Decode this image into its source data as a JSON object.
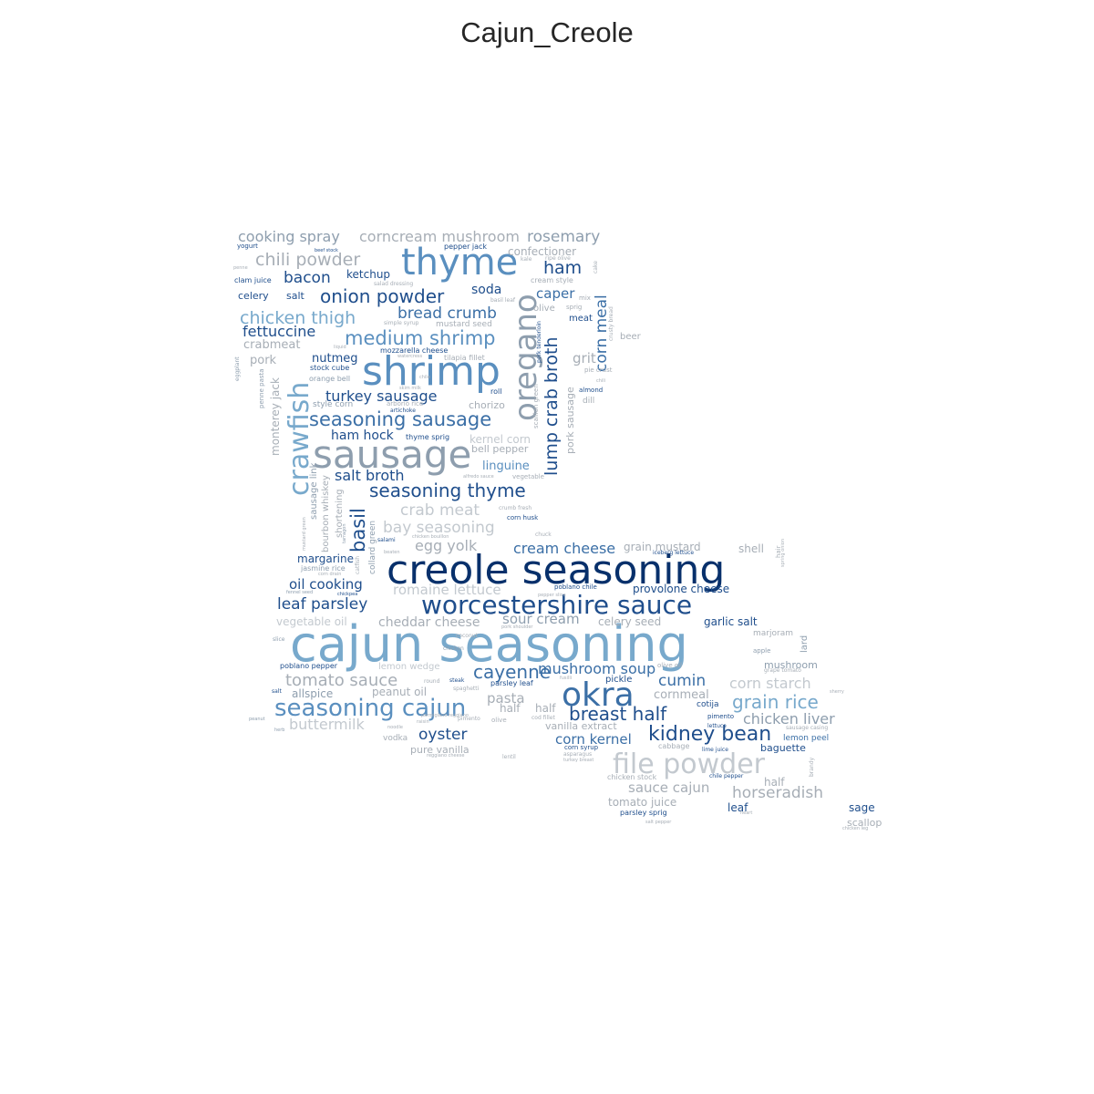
{
  "title": "Cajun_Creole",
  "palette": {
    "c1": "#08306b",
    "c2": "#1f4e8c",
    "c3": "#3b6fa6",
    "c4": "#5a8fbf",
    "c5": "#78a9cc",
    "c6": "#8e9eae",
    "c7": "#a7aeb6",
    "c8": "#c3c9cf"
  },
  "words": {
    "cajun_seasoning": "cajun seasoning",
    "creole_seasoning": "creole seasoning",
    "worcestershire_sauce": "worcestershire sauce",
    "shrimp": "shrimp",
    "sausage": "sausage",
    "thyme": "thyme",
    "okra": "okra",
    "oregano": "oregano",
    "crawfish": "crawfish",
    "file_powder": "file powder",
    "seasoning_cajun": "seasoning cajun",
    "kidney_bean": "kidney bean",
    "seasoning_sausage": "seasoning sausage",
    "medium_shrimp": "medium shrimp",
    "seasoning_thyme": "seasoning thyme",
    "onion_powder": "onion powder",
    "breast_half": "breast half",
    "grain_rice": "grain rice",
    "cayenne": "cayenne",
    "chili_powder": "chili powder",
    "chicken_thigh": "chicken thigh",
    "bread_crumb": "bread crumb",
    "lump_crab_broth": "lump crab broth",
    "corn_meal": "corn meal",
    "tomato_sauce": "tomato sauce",
    "leaf_parsley": "leaf parsley",
    "basil": "basil",
    "cooking_spray": "cooking spray",
    "cornream_mushroom": "corncream mushroom",
    "rosemary": "rosemary",
    "ham": "ham",
    "bacon": "bacon",
    "fettuccine": "fettuccine",
    "turkey_sausage": "turkey sausage",
    "salt_broth": "salt broth",
    "crab_meat": "crab meat",
    "bay_seasoning": "bay seasoning",
    "egg_yolk": "egg yolk",
    "cream_cheese": "cream cheese",
    "mushroom_soup": "mushroom soup",
    "cumin": "cumin",
    "corn_starch": "corn starch",
    "chicken_liver": "chicken liver",
    "horseradish": "horseradish",
    "oyster": "oyster",
    "buttermilk": "buttermilk",
    "romaine_lettuce": "romaine lettuce",
    "cheddar_cheese": "cheddar cheese",
    "sour_cream": "sour cream",
    "oil_cooking": "oil cooking",
    "pasta": "pasta",
    "corn_kernel": "corn kernel",
    "sauce_cajun": "sauce cajun",
    "caper": "caper",
    "soda": "soda",
    "grit": "grit",
    "ham_hock": "ham hock",
    "linguine": "linguine",
    "nutmeg": "nutmeg",
    "crabmeat": "crabmeat",
    "pork": "pork",
    "celery": "celery",
    "salt": "salt",
    "ketchup": "ketchup",
    "confectioner": "confectioner",
    "monterey_jack": "monterey jack",
    "margarine": "margarine",
    "vegetable_oil": "vegetable oil",
    "allspice": "allspice",
    "peanut_oil": "peanut oil",
    "half": "half",
    "cornmeal": "cornmeal",
    "celery_seed": "celery seed",
    "garlic_salt": "garlic salt",
    "provolone_cheese": "provolone cheese",
    "grain_mustard": "grain mustard",
    "shell": "shell",
    "chorizo": "chorizo",
    "bell_pepper": "bell pepper",
    "kernel_corn": "kernel corn",
    "leaf": "leaf",
    "sage": "sage",
    "scallop": "scallop",
    "tomato_juice": "tomato juice",
    "baguette": "baguette",
    "lemon_peel": "lemon peel",
    "mushroom": "mushroom",
    "pickle": "pickle",
    "vanilla_extract": "vanilla extract",
    "pure_vanilla": "pure vanilla",
    "vodka": "vodka",
    "lemon_wedge": "lemon wedge",
    "lard": "lard",
    "marjoram": "marjoram",
    "beer": "beer",
    "dill": "dill",
    "pork_sausage": "pork sausage",
    "meat": "meat",
    "olive": "olive",
    "sausage_link": "sausage link",
    "bourbon_whiskey": "bourbon whiskey",
    "shortening": "shortening",
    "collard_green": "collard green",
    "jasmine_rice": "jasmine rice",
    "style_corn": "style corn",
    "stock_cube": "stock cube",
    "orange_bell": "orange bell",
    "mustard_seed": "mustard seed",
    "tilapia_fillet": "tilapia fillet",
    "mozzarella_cheese": "mozzarella cheese",
    "pepper_jack": "pepper jack",
    "cream_style": "cream style",
    "clam_juice": "clam juice",
    "yogurt": "yogurt",
    "beef_stock": "beef stock",
    "salad_dressing": "salad dressing",
    "simple_syrup": "simple syrup",
    "basil_leaf": "basil leaf",
    "roll": "roll",
    "thyme_sprig": "thyme sprig",
    "vegetable": "vegetable",
    "cotija": "cotija",
    "pimento": "pimento",
    "cabbage": "cabbage",
    "chicken_stock": "chicken stock",
    "parsley_sprig": "parsley sprig",
    "corn_syrup": "corn syrup",
    "asparagus": "asparagus",
    "lentil": "lentil",
    "chuck": "chuck",
    "crumb_fresh": "crumb fresh",
    "corn_husk": "corn husk",
    "poblano_chile": "poblano chile",
    "poblano_pepper": "poblano pepper",
    "parsley_leaf": "parsley leaf",
    "apple": "apple",
    "iceberg_lettuce": "iceberg lettuce",
    "lime_juice": "lime juice",
    "chile_pepper": "chile pepper",
    "olive_oil": "olive oil",
    "grape_tomato": "grape tomato",
    "eggplant": "eggplant",
    "penne_pasta": "penne pasta",
    "chickpea": "chickpea",
    "salami": "salami",
    "artichoke": "artichoke",
    "pie_crust": "pie crust",
    "almond": "almond",
    "chili": "chili",
    "penne": "penne",
    "kale": "kale",
    "ripe_olive": "ripe olive",
    "mix": "mix",
    "sprig": "sprig",
    "crusty_bread": "crusty bread",
    "liquid": "liquid",
    "watercress": "watercress",
    "skim_milk": "skim milk",
    "chile": "chile",
    "arborio_rice": "arborio rice",
    "alfredo_sauce": "alfredo sauce",
    "chicken_bouillon": "chicken bouillon",
    "parmigiano_reggiano": "parmigiano reggiano",
    "steak": "steak",
    "spaghetti": "spaghetti",
    "round": "round",
    "raisin": "raisin",
    "noodle": "noodle",
    "herb": "herb",
    "peanut": "peanut",
    "chicken": "chicken",
    "slice": "slice",
    "coconut": "coconut",
    "fusilli": "fusilli",
    "pork_shoulder": "pork shoulder",
    "cod_fillet": "cod fillet",
    "lettuce": "lettuce",
    "sausage_casing": "sausage casing",
    "sherry": "sherry",
    "brandy": "brandy",
    "heart": "heart",
    "salt_pepper": "salt pepper",
    "chicken_leg": "chicken leg",
    "turkey_breast": "turkey breast",
    "reggiano_cheese": "reggiano cheese",
    "fennel_seed": "fennel seed",
    "corn_drain": "corn drain",
    "beaten": "beaten",
    "pepper_slice": "pepper slice",
    "spring_onion": "spring onion",
    "pork_tenderloin": "pork tenderloin",
    "scallion_green": "scallion green",
    "tarragon": "tarragon",
    "catfish": "catfish",
    "mustard_green": "mustard green",
    "cake": "cake",
    "hair": "hair"
  }
}
